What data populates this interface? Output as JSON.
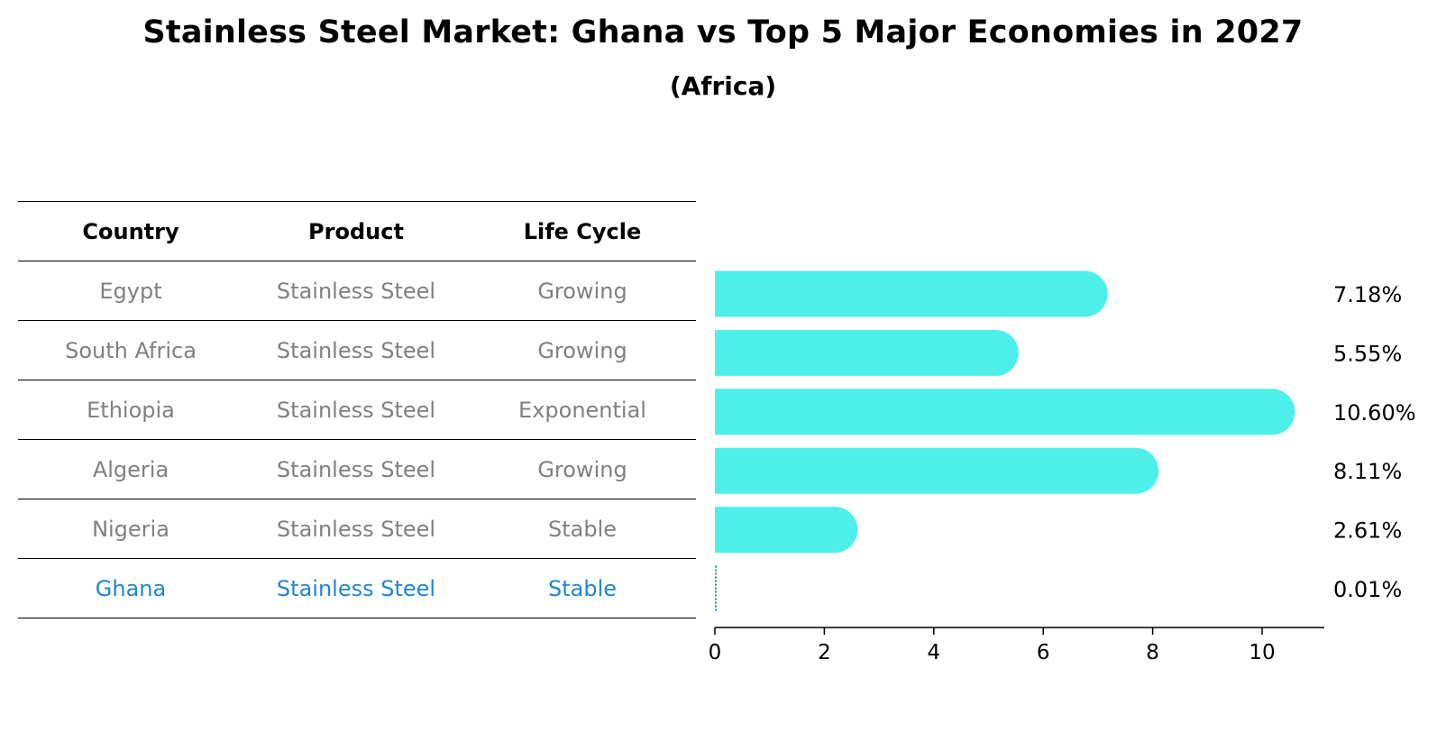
{
  "header": {
    "title": "Stainless Steel Market: Ghana vs Top 5 Major Economies in 2027",
    "subtitle": "(Africa)"
  },
  "table": {
    "columns": [
      "Country",
      "Product",
      "Life Cycle"
    ],
    "rows": [
      {
        "country": "Egypt",
        "product": "Stainless Steel",
        "life_cycle": "Growing"
      },
      {
        "country": "South Africa",
        "product": "Stainless Steel",
        "life_cycle": "Growing"
      },
      {
        "country": "Ethiopia",
        "product": "Stainless Steel",
        "life_cycle": "Exponential"
      },
      {
        "country": "Algeria",
        "product": "Stainless Steel",
        "life_cycle": "Growing"
      },
      {
        "country": "Nigeria",
        "product": "Stainless Steel",
        "life_cycle": "Stable"
      },
      {
        "country": "Ghana",
        "product": "Stainless Steel",
        "life_cycle": "Stable"
      }
    ]
  },
  "colors": {
    "bar": "#4eefeb",
    "highlight": "#1f86cf",
    "muted": "#808080"
  },
  "chart_data": {
    "type": "bar",
    "orientation": "horizontal",
    "title": "Stainless Steel Market: Ghana vs Top 5 Major Economies in 2027",
    "subtitle": "(Africa)",
    "categories": [
      "Egypt",
      "South Africa",
      "Ethiopia",
      "Algeria",
      "Nigeria",
      "Ghana"
    ],
    "values": [
      7.18,
      5.55,
      10.6,
      8.11,
      2.61,
      0.01
    ],
    "value_labels": [
      "7.18%",
      "5.55%",
      "10.60%",
      "8.11%",
      "2.61%",
      "0.01%"
    ],
    "xticks": [
      0,
      2,
      4,
      6,
      8,
      10
    ],
    "xlim": [
      0,
      11.1
    ],
    "xlabel": "",
    "ylabel": "",
    "grid": false,
    "highlight_category": "Ghana"
  }
}
